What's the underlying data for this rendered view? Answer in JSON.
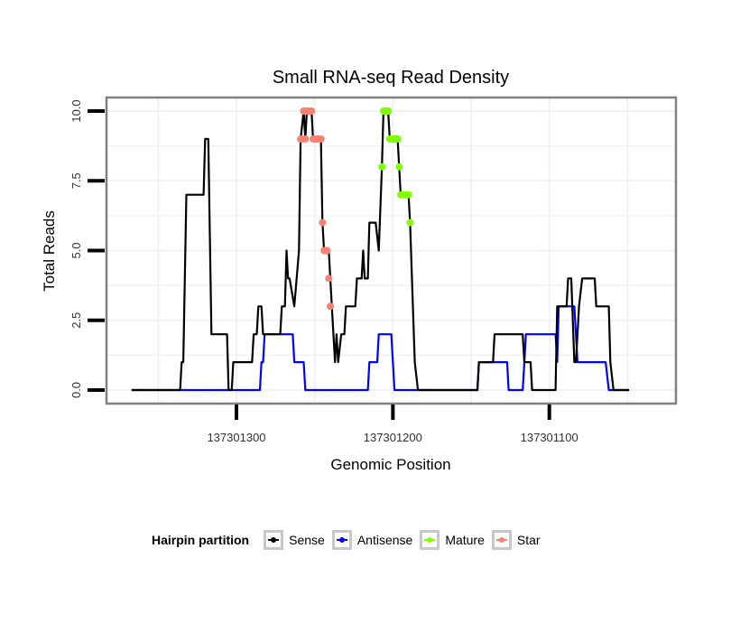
{
  "chart_data": {
    "type": "line",
    "title": "Small RNA-seq Read Density",
    "xlabel": "Genomic Position",
    "ylabel": "Total Reads",
    "x_reversed": true,
    "xlim": [
      137301367,
      137301036
    ],
    "ylim": [
      0,
      10
    ],
    "xticks": [
      137301300,
      137301200,
      137301100
    ],
    "xtick_labels": [
      "137301300",
      "137301200",
      "137301100"
    ],
    "yticks": [
      0,
      2.5,
      5,
      7.5,
      10
    ],
    "ytick_labels": [
      "0.0",
      "2.5",
      "5.0",
      "7.5",
      "10.0"
    ],
    "grid": true,
    "legend": {
      "title": "Hairpin partition",
      "placement": "bottom",
      "entries": [
        {
          "name": "Sense",
          "color": "#000000"
        },
        {
          "name": "Antisense",
          "color": "#0000ff"
        },
        {
          "name": "Mature",
          "color": "#7fff00"
        },
        {
          "name": "Star",
          "color": "#fa8072"
        }
      ]
    },
    "series": [
      {
        "name": "Sense",
        "color": "#000000",
        "points": [
          [
            137301367,
            0
          ],
          [
            137301336,
            0
          ],
          [
            137301335,
            1
          ],
          [
            137301334,
            1
          ],
          [
            137301332,
            7
          ],
          [
            137301321,
            7
          ],
          [
            137301320,
            9
          ],
          [
            137301318,
            9
          ],
          [
            137301316,
            2
          ],
          [
            137301306,
            2
          ],
          [
            137301305,
            0
          ],
          [
            137301303,
            0
          ],
          [
            137301302,
            1
          ],
          [
            137301290,
            1
          ],
          [
            137301289,
            2
          ],
          [
            137301287,
            2
          ],
          [
            137301286,
            3
          ],
          [
            137301284,
            3
          ],
          [
            137301283,
            2
          ],
          [
            137301272,
            2
          ],
          [
            137301271,
            3
          ],
          [
            137301269,
            3
          ],
          [
            137301268,
            5
          ],
          [
            137301267,
            4
          ],
          [
            137301266,
            4
          ],
          [
            137301263,
            3
          ],
          [
            137301260,
            5
          ],
          [
            137301259,
            9
          ],
          [
            137301257,
            10
          ],
          [
            137301256,
            9
          ],
          [
            137301255,
            10
          ],
          [
            137301252,
            10
          ],
          [
            137301251,
            9
          ],
          [
            137301246,
            9
          ],
          [
            137301245,
            6
          ],
          [
            137301244,
            5
          ],
          [
            137301241,
            5
          ],
          [
            137301240,
            4
          ],
          [
            137301239,
            3
          ],
          [
            137301237,
            1
          ],
          [
            137301236,
            2
          ],
          [
            137301235,
            1
          ],
          [
            137301233,
            2
          ],
          [
            137301231,
            2
          ],
          [
            137301230,
            3
          ],
          [
            137301224,
            3
          ],
          [
            137301223,
            4
          ],
          [
            137301220,
            4
          ],
          [
            137301219,
            5
          ],
          [
            137301218,
            4
          ],
          [
            137301216,
            4
          ],
          [
            137301215,
            6
          ],
          [
            137301211,
            6
          ],
          [
            137301209,
            5
          ],
          [
            137301207,
            8
          ],
          [
            137301206,
            10
          ],
          [
            137301203,
            10
          ],
          [
            137301202,
            9
          ],
          [
            137301197,
            9
          ],
          [
            137301196,
            8
          ],
          [
            137301195,
            7
          ],
          [
            137301190,
            7
          ],
          [
            137301189,
            6
          ],
          [
            137301186,
            1
          ],
          [
            137301184,
            0
          ],
          [
            137301146,
            0
          ],
          [
            137301145,
            1
          ],
          [
            137301136,
            1
          ],
          [
            137301135,
            2
          ],
          [
            137301117,
            2
          ],
          [
            137301116,
            1
          ],
          [
            137301112,
            1
          ],
          [
            137301111,
            0
          ],
          [
            137301096,
            0
          ],
          [
            137301095,
            3
          ],
          [
            137301089,
            3
          ],
          [
            137301088,
            4
          ],
          [
            137301086,
            4
          ],
          [
            137301084,
            1
          ],
          [
            137301083,
            1
          ],
          [
            137301081,
            3
          ],
          [
            137301079,
            4
          ],
          [
            137301071,
            4
          ],
          [
            137301070,
            3
          ],
          [
            137301062,
            3
          ],
          [
            137301061,
            1
          ],
          [
            137301059,
            0
          ],
          [
            137301049,
            0
          ]
        ]
      },
      {
        "name": "Antisense",
        "color": "#0000ff",
        "points": [
          [
            137301367,
            0
          ],
          [
            137301285,
            0
          ],
          [
            137301284,
            1
          ],
          [
            137301283,
            1
          ],
          [
            137301282,
            2
          ],
          [
            137301264,
            2
          ],
          [
            137301263,
            1
          ],
          [
            137301257,
            1
          ],
          [
            137301256,
            0
          ],
          [
            137301216,
            0
          ],
          [
            137301215,
            1
          ],
          [
            137301210,
            1
          ],
          [
            137301209,
            2
          ],
          [
            137301201,
            2
          ],
          [
            137301199,
            0
          ],
          [
            137301146,
            0
          ],
          [
            137301145,
            1
          ],
          [
            137301127,
            1
          ],
          [
            137301126,
            0
          ],
          [
            137301117,
            0
          ],
          [
            137301116,
            1
          ],
          [
            137301115,
            2
          ],
          [
            137301096,
            2
          ],
          [
            137301095,
            1
          ],
          [
            137301094,
            3
          ],
          [
            137301084,
            3
          ],
          [
            137301082,
            1
          ],
          [
            137301064,
            1
          ],
          [
            137301062,
            0
          ],
          [
            137301049,
            0
          ]
        ]
      },
      {
        "name": "Mature",
        "color": "#7fff00",
        "points": [
          [
            137301207,
            8
          ],
          [
            137301206,
            10
          ],
          [
            137301205,
            10
          ],
          [
            137301204,
            10
          ],
          [
            137301203,
            10
          ],
          [
            137301202,
            9
          ],
          [
            137301201,
            9
          ],
          [
            137301200,
            9
          ],
          [
            137301199,
            9
          ],
          [
            137301198,
            9
          ],
          [
            137301197,
            9
          ],
          [
            137301196,
            8
          ],
          [
            137301195,
            7
          ],
          [
            137301194,
            7
          ],
          [
            137301193,
            7
          ],
          [
            137301192,
            7
          ],
          [
            137301191,
            7
          ],
          [
            137301190,
            7
          ],
          [
            137301189,
            6
          ]
        ]
      },
      {
        "name": "Star",
        "color": "#fa8072",
        "points": [
          [
            137301259,
            9
          ],
          [
            137301258,
            9
          ],
          [
            137301257,
            10
          ],
          [
            137301256,
            9
          ],
          [
            137301255,
            10
          ],
          [
            137301254,
            10
          ],
          [
            137301253,
            10
          ],
          [
            137301252,
            10
          ],
          [
            137301251,
            9
          ],
          [
            137301250,
            9
          ],
          [
            137301249,
            9
          ],
          [
            137301248,
            9
          ],
          [
            137301247,
            9
          ],
          [
            137301246,
            9
          ],
          [
            137301245,
            6
          ],
          [
            137301244,
            5
          ],
          [
            137301243,
            5
          ],
          [
            137301242,
            5
          ],
          [
            137301241,
            4
          ],
          [
            137301240,
            3
          ]
        ]
      }
    ]
  }
}
